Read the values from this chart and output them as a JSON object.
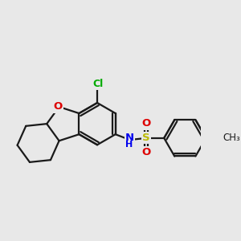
{
  "bg_color": "#e8e8e8",
  "bond_color": "#1a1a1a",
  "bond_width": 1.6,
  "atom_colors": {
    "O": "#dd0000",
    "N": "#0000ee",
    "S": "#bbbb00",
    "Cl": "#00aa00",
    "C": "#1a1a1a"
  },
  "figsize": [
    3.0,
    3.0
  ],
  "dpi": 100,
  "xlim": [
    -0.5,
    8.5
  ],
  "ylim": [
    -2.5,
    3.5
  ]
}
